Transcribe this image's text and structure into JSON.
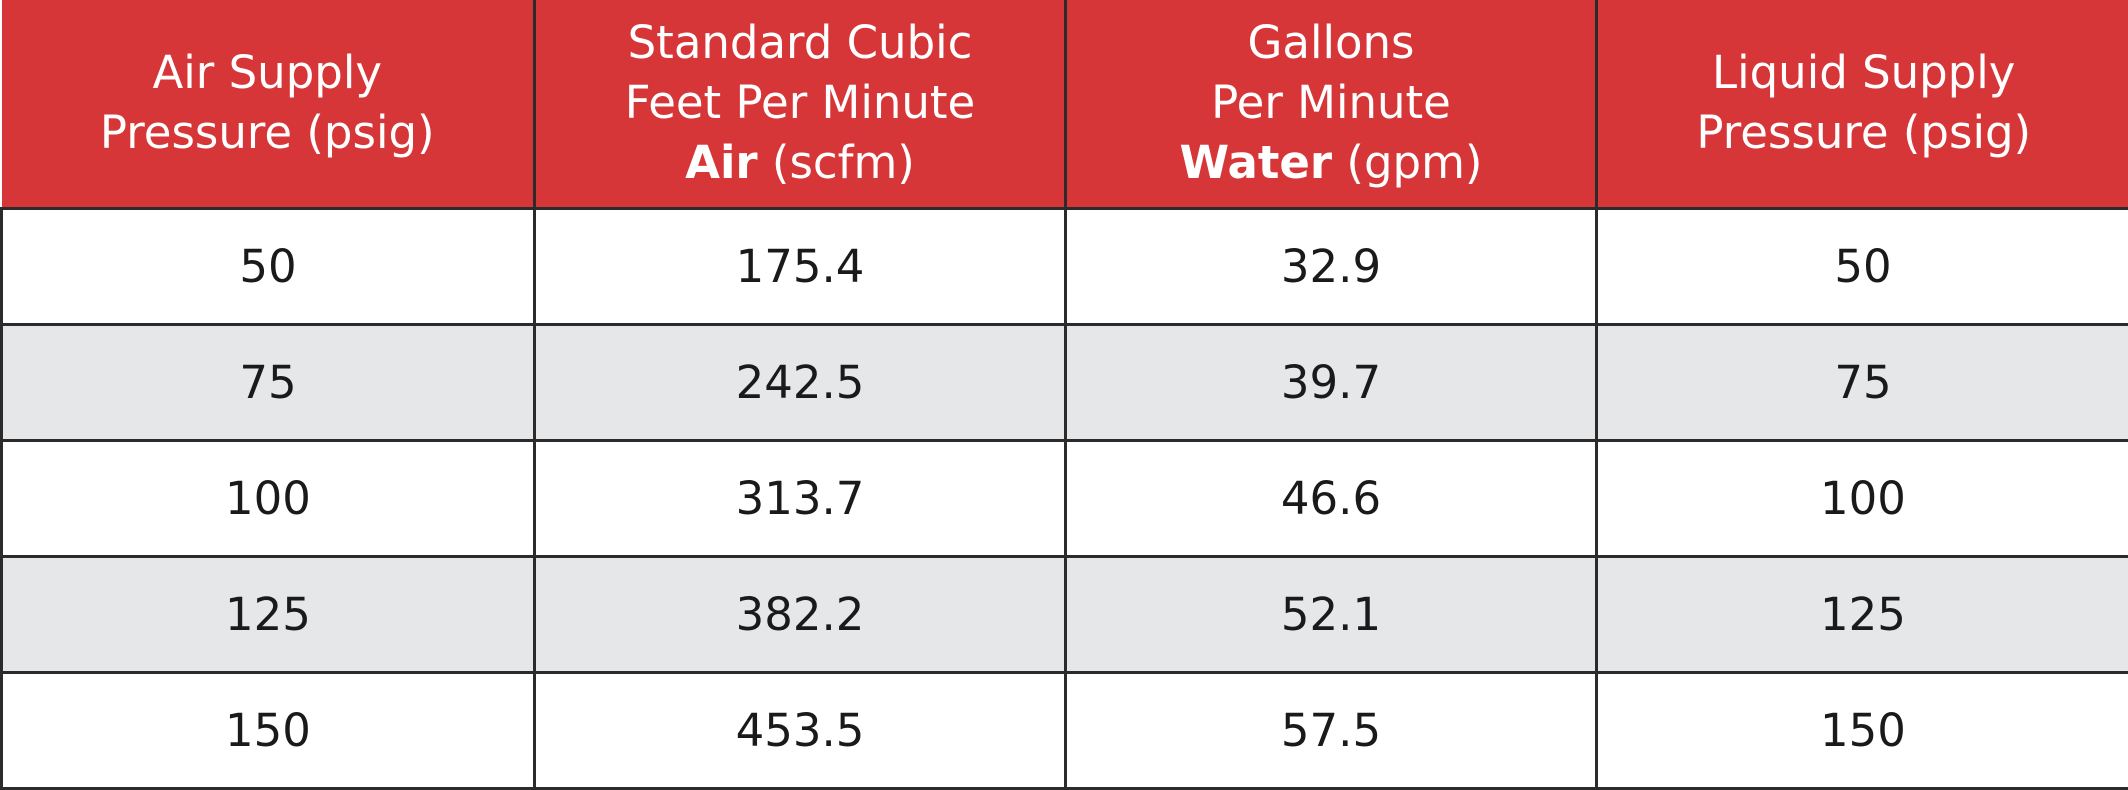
{
  "header": [
    {
      "lines": [
        "Air Supply",
        "Pressure (psig)"
      ],
      "bold_part": "",
      "rest": ""
    },
    {
      "lines": [
        "Standard Cubic",
        "Feet Per Minute"
      ],
      "bold_part": "Air",
      "rest": " (scfm)"
    },
    {
      "lines": [
        "Gallons",
        "Per Minute"
      ],
      "bold_part": "Water",
      "rest": " (gpm)"
    },
    {
      "lines": [
        "Liquid Supply",
        "Pressure (psig)"
      ],
      "bold_part": "",
      "rest": ""
    }
  ],
  "rows": [
    [
      "50",
      "175.4",
      "32.9",
      "50"
    ],
    [
      "75",
      "242.5",
      "39.7",
      "75"
    ],
    [
      "100",
      "313.7",
      "46.6",
      "100"
    ],
    [
      "125",
      "382.2",
      "52.1",
      "125"
    ],
    [
      "150",
      "453.5",
      "57.5",
      "150"
    ]
  ],
  "colors": {
    "header_bg": "#d63638",
    "header_text": "#ffffff",
    "stripe": "#e6e7e8",
    "border": "#2b2b2b"
  }
}
